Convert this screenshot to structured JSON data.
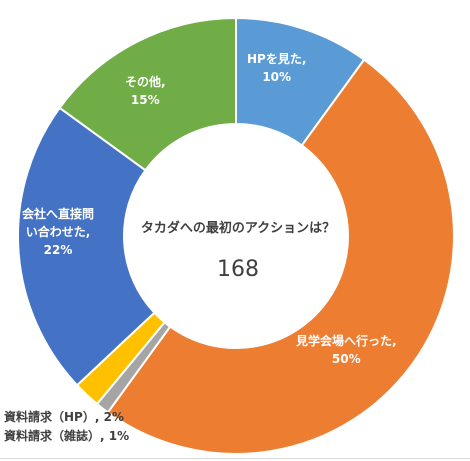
{
  "chart_data": {
    "type": "donut",
    "title": "タカダへの最初のアクションは？",
    "center_value": "168",
    "slices": [
      {
        "name": "HPを見た",
        "label_pct": "10%",
        "value": 10,
        "color": "#5B9BD5"
      },
      {
        "name": "見学会場へ行った",
        "label_pct": "50%",
        "value": 50,
        "color": "#ED7D31"
      },
      {
        "name": "資料請求（雑誌）",
        "label_pct": "1%",
        "value": 1,
        "color": "#A5A5A5"
      },
      {
        "name": "資料請求（HP）",
        "label_pct": "2%",
        "value": 2,
        "color": "#FFC000"
      },
      {
        "name": "会社へ直接問い合わせた",
        "label_pct": "22%",
        "value": 22,
        "color": "#4472C4"
      },
      {
        "name": "その他",
        "label_pct": "15%",
        "value": 15,
        "color": "#70AD47"
      }
    ],
    "labels": {
      "hp": {
        "name": "HPを見た,",
        "pct": "10%"
      },
      "kengaku": {
        "name": "見学会場へ行った,",
        "pct": "50%"
      },
      "kaisha_l1": "会社へ直接問",
      "kaisha_l2": "い合わせた,",
      "kaisha_pct": "22%",
      "sonota": {
        "name": "その他,",
        "pct": "15%"
      },
      "shiryo_hp": "資料請求（HP）, 2%",
      "shiryo_zasshi": "資料請求（雑誌）, 1%"
    }
  }
}
